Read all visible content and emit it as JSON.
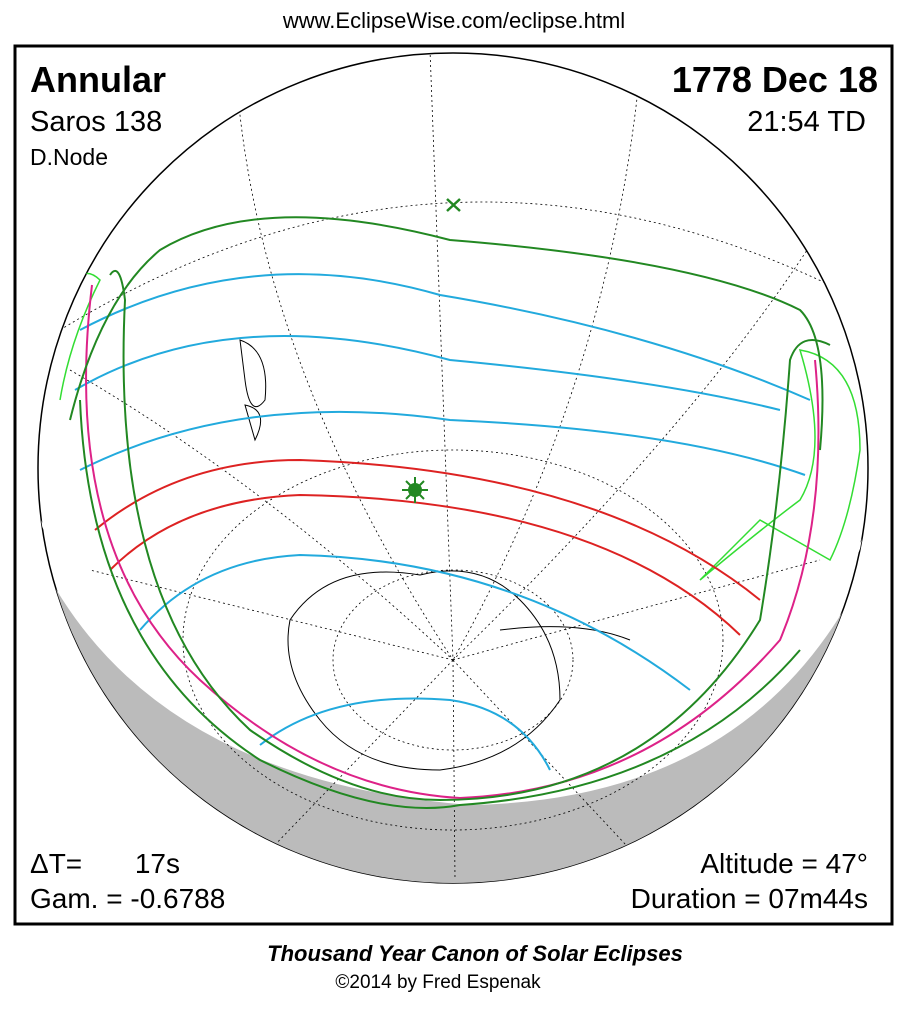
{
  "header": {
    "url": "www.EclipseWise.com/eclipse.html",
    "type": "Annular",
    "date": "1778 Dec 18",
    "saros": "Saros 138",
    "time": "21:54 TD",
    "node": "D.Node"
  },
  "stats": {
    "delta_t_label": "ΔT=",
    "delta_t_value": "17s",
    "gamma": "Gam. = -0.6788",
    "altitude": "Altitude = 47°",
    "duration": "Duration = 07m44s"
  },
  "footer": {
    "title": "Thousand Year Canon of Solar Eclipses",
    "credit": "©2014 by Fred Espenak"
  }
}
